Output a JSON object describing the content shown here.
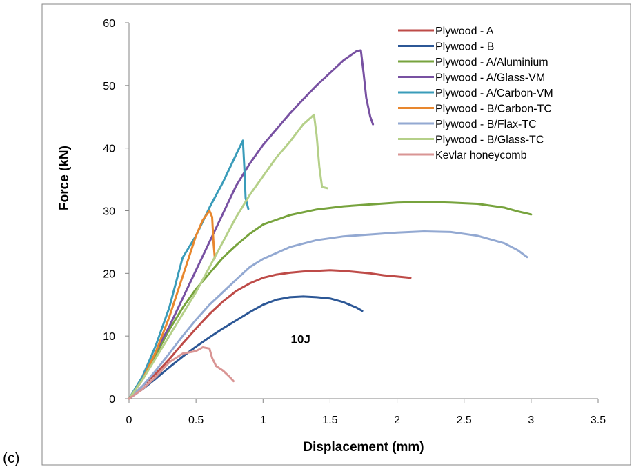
{
  "panel_label": "(c)",
  "chart_data": {
    "type": "line",
    "xlabel": "Displacement (mm)",
    "ylabel": "Force (kN)",
    "xlim": [
      0,
      3.5
    ],
    "ylim": [
      0,
      60
    ],
    "xticks": [
      "0",
      "0.5",
      "1",
      "1.5",
      "2",
      "2.5",
      "3",
      "3.5"
    ],
    "yticks": [
      "0",
      "10",
      "20",
      "30",
      "40",
      "50",
      "60"
    ],
    "grid": false,
    "legend_position": "top-right",
    "annotation": {
      "text": "10J",
      "x": 1.28,
      "y": 9.5
    },
    "series": [
      {
        "name": "Plywood - A",
        "color": "#be4b48",
        "x": [
          0,
          0.1,
          0.2,
          0.3,
          0.4,
          0.5,
          0.6,
          0.7,
          0.8,
          0.9,
          1.0,
          1.1,
          1.2,
          1.3,
          1.4,
          1.5,
          1.6,
          1.7,
          1.8,
          1.9,
          2.0,
          2.1
        ],
        "y": [
          0,
          2,
          4,
          6.3,
          8.8,
          11.2,
          13.5,
          15.5,
          17.2,
          18.4,
          19.3,
          19.8,
          20.1,
          20.3,
          20.4,
          20.5,
          20.4,
          20.2,
          20.0,
          19.7,
          19.5,
          19.3
        ]
      },
      {
        "name": "Plywood - B",
        "color": "#2c5796",
        "x": [
          0,
          0.1,
          0.2,
          0.3,
          0.4,
          0.5,
          0.6,
          0.7,
          0.8,
          0.9,
          1.0,
          1.1,
          1.2,
          1.3,
          1.4,
          1.5,
          1.6,
          1.7,
          1.74
        ],
        "y": [
          0,
          1.5,
          3.2,
          5,
          6.7,
          8.3,
          9.8,
          11.2,
          12.5,
          13.8,
          15,
          15.8,
          16.2,
          16.3,
          16.2,
          16.0,
          15.4,
          14.5,
          14.0
        ]
      },
      {
        "name": "Plywood - A/Aluminium",
        "color": "#77a33d",
        "x": [
          0,
          0.1,
          0.2,
          0.3,
          0.4,
          0.5,
          0.6,
          0.7,
          0.8,
          0.9,
          1.0,
          1.2,
          1.4,
          1.6,
          1.8,
          2.0,
          2.2,
          2.4,
          2.6,
          2.8,
          2.9,
          3.0
        ],
        "y": [
          0,
          3,
          7,
          11,
          14.5,
          17.5,
          20,
          22.5,
          24.5,
          26.3,
          27.8,
          29.3,
          30.2,
          30.7,
          31.0,
          31.3,
          31.4,
          31.3,
          31.1,
          30.5,
          29.9,
          29.4
        ]
      },
      {
        "name": "Plywood - A/Glass-VM",
        "color": "#7851a2",
        "x": [
          0,
          0.1,
          0.2,
          0.3,
          0.4,
          0.5,
          0.6,
          0.7,
          0.8,
          0.9,
          1.0,
          1.1,
          1.2,
          1.3,
          1.4,
          1.5,
          1.6,
          1.7,
          1.73,
          1.75,
          1.77,
          1.8,
          1.82
        ],
        "y": [
          0,
          3,
          7.5,
          11.5,
          16,
          20.5,
          25,
          29.5,
          34,
          37.5,
          40.5,
          43,
          45.5,
          47.8,
          50,
          52,
          54,
          55.5,
          55.6,
          52,
          48,
          45,
          43.8
        ]
      },
      {
        "name": "Plywood - A/Carbon-VM",
        "color": "#3a9cba",
        "x": [
          0,
          0.1,
          0.2,
          0.3,
          0.4,
          0.5,
          0.6,
          0.7,
          0.8,
          0.85,
          0.86,
          0.87,
          0.89
        ],
        "y": [
          0,
          3.5,
          8.5,
          14.5,
          22.5,
          26,
          30.5,
          34.5,
          39,
          41.2,
          37,
          32,
          30.3
        ]
      },
      {
        "name": "Plywood - B/Carbon-TC",
        "color": "#e8872e",
        "x": [
          0,
          0.1,
          0.2,
          0.3,
          0.4,
          0.5,
          0.55,
          0.6,
          0.62,
          0.63,
          0.64
        ],
        "y": [
          0,
          3,
          7.5,
          13,
          19.5,
          26,
          28.5,
          30,
          29,
          25,
          22.5
        ]
      },
      {
        "name": "Plywood - B/Flax-TC",
        "color": "#93a9d2",
        "x": [
          0,
          0.1,
          0.2,
          0.3,
          0.4,
          0.5,
          0.6,
          0.7,
          0.8,
          0.9,
          1.0,
          1.2,
          1.4,
          1.6,
          1.8,
          2.0,
          2.2,
          2.4,
          2.6,
          2.8,
          2.9,
          2.97
        ],
        "y": [
          0,
          2,
          4.5,
          7.2,
          10,
          12.6,
          15,
          17,
          19,
          21,
          22.3,
          24.2,
          25.3,
          25.9,
          26.2,
          26.5,
          26.7,
          26.6,
          26.0,
          24.8,
          23.7,
          22.6
        ]
      },
      {
        "name": "Plywood - B/Glass-TC",
        "color": "#b5d089",
        "x": [
          0,
          0.1,
          0.2,
          0.3,
          0.4,
          0.5,
          0.6,
          0.7,
          0.8,
          0.9,
          1.0,
          1.1,
          1.2,
          1.3,
          1.38,
          1.4,
          1.42,
          1.44,
          1.48
        ],
        "y": [
          0,
          3,
          6.5,
          10,
          13.5,
          17,
          21,
          25,
          29,
          32.5,
          35.5,
          38.5,
          41,
          43.8,
          45.3,
          42,
          37,
          33.8,
          33.6
        ]
      },
      {
        "name": "Kevlar honeycomb",
        "color": "#d99594",
        "x": [
          0,
          0.1,
          0.2,
          0.3,
          0.4,
          0.5,
          0.55,
          0.6,
          0.62,
          0.65,
          0.7,
          0.75,
          0.78
        ],
        "y": [
          0,
          1.5,
          3.5,
          5.8,
          7.2,
          7.6,
          8.2,
          8.0,
          6.5,
          5.2,
          4.5,
          3.5,
          2.8
        ]
      }
    ]
  }
}
